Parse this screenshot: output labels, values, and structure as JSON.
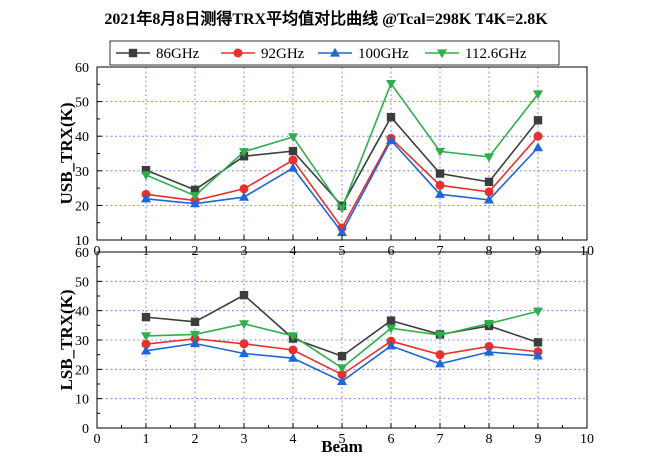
{
  "title": "2021年8月8日测得TRX平均值对比曲线 @Tcal=298K T4K=2.8K",
  "colors": {
    "86GHz": "#3d3d3d",
    "92GHz": "#e8302e",
    "100GHz": "#1f66d6",
    "112.6GHz": "#2fae4b",
    "grid": "#6f6ff2"
  },
  "chart_data": [
    {
      "type": "line",
      "panel": "upper",
      "xlabel": "",
      "ylabel": "USB_TRX(K)",
      "xlim": [
        0,
        10
      ],
      "ylim": [
        10,
        60
      ],
      "xticks": [
        0,
        1,
        2,
        3,
        4,
        5,
        6,
        7,
        8,
        9,
        10
      ],
      "yticks": [
        10,
        20,
        30,
        40,
        50,
        60
      ],
      "grid": true,
      "x": [
        1,
        2,
        3,
        4,
        5,
        6,
        7,
        8,
        9
      ],
      "series": [
        {
          "name": "86GHz",
          "marker": "square",
          "values": [
            30.2,
            24.5,
            34.2,
            35.7,
            19.9,
            45.5,
            29.2,
            26.8,
            44.6
          ]
        },
        {
          "name": "92GHz",
          "marker": "circle",
          "values": [
            23.2,
            21.4,
            24.8,
            33.1,
            13.5,
            39.4,
            25.8,
            23.9,
            40.0
          ]
        },
        {
          "name": "100GHz",
          "marker": "triangle-up",
          "values": [
            21.9,
            20.5,
            22.4,
            30.8,
            12.2,
            38.8,
            23.2,
            21.6,
            36.7
          ]
        },
        {
          "name": "112.6GHz",
          "marker": "triangle-down",
          "values": [
            28.8,
            22.8,
            35.5,
            39.8,
            19.2,
            55.2,
            35.6,
            34.0,
            52.2
          ]
        }
      ]
    },
    {
      "type": "line",
      "panel": "lower",
      "xlabel": "Beam",
      "ylabel": "LSB_TRX(K)",
      "xlim": [
        0,
        10
      ],
      "ylim": [
        0,
        60
      ],
      "xticks": [
        0,
        1,
        2,
        3,
        4,
        5,
        6,
        7,
        8,
        9,
        10
      ],
      "yticks": [
        0,
        10,
        20,
        30,
        40,
        50,
        60
      ],
      "grid": true,
      "x": [
        1,
        2,
        3,
        4,
        5,
        6,
        7,
        8,
        9
      ],
      "series": [
        {
          "name": "86GHz",
          "marker": "square",
          "values": [
            37.8,
            36.2,
            45.3,
            30.5,
            24.5,
            36.6,
            31.9,
            34.8,
            29.2
          ]
        },
        {
          "name": "92GHz",
          "marker": "circle",
          "values": [
            28.6,
            30.4,
            28.7,
            26.6,
            18.2,
            29.6,
            25.0,
            27.8,
            26.0
          ]
        },
        {
          "name": "100GHz",
          "marker": "triangle-up",
          "values": [
            26.3,
            28.8,
            25.4,
            23.8,
            15.9,
            28.0,
            21.9,
            25.9,
            24.6
          ]
        },
        {
          "name": "112.6GHz",
          "marker": "triangle-down",
          "values": [
            31.4,
            31.9,
            35.5,
            31.4,
            20.5,
            34.0,
            31.7,
            35.6,
            39.8
          ]
        }
      ]
    }
  ],
  "legend": {
    "position": "top",
    "items": [
      "86GHz",
      "92GHz",
      "100GHz",
      "112.6GHz"
    ]
  }
}
